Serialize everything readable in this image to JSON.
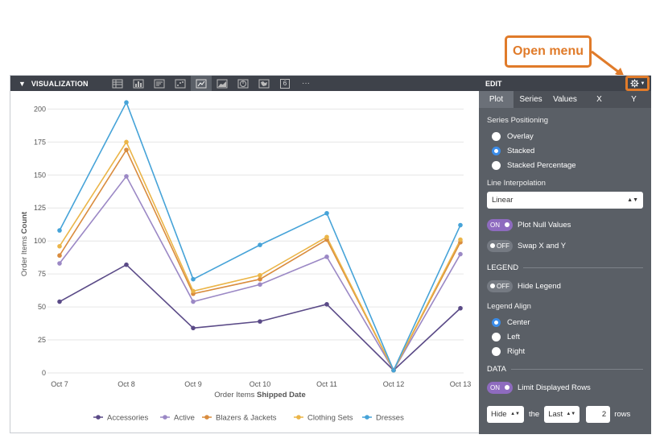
{
  "annotation": {
    "label": "Open menu"
  },
  "visualization": {
    "title": "VISUALIZATION",
    "tools": [
      "table-icon",
      "bar-chart-icon",
      "list-icon",
      "scatter-icon",
      "line-chart-icon",
      "area-chart-icon",
      "pie-chart-icon",
      "map-icon",
      "single-value-icon",
      "more-icon"
    ],
    "single_value_label": "6",
    "more_label": "···"
  },
  "chart_data": {
    "type": "line",
    "categories": [
      "Oct 7",
      "Oct 8",
      "Oct 9",
      "Oct 10",
      "Oct 11",
      "Oct 12",
      "Oct 13"
    ],
    "ylabel": "Order Items",
    "ylabel_bold": "Count",
    "xlabel": "Order Items",
    "xlabel_bold": "Shipped Date",
    "ylim": [
      0,
      210
    ],
    "yticks": [
      0,
      25,
      50,
      75,
      100,
      125,
      150,
      175,
      200
    ],
    "grid": true,
    "legend_position": "bottom",
    "series": [
      {
        "name": "Accessories",
        "color": "#5a4a87",
        "values": [
          54,
          82,
          34,
          39,
          52,
          2,
          49
        ]
      },
      {
        "name": "Active",
        "color": "#9b88c5",
        "values": [
          83,
          149,
          54,
          67,
          88,
          2,
          90
        ]
      },
      {
        "name": "Blazers & Jackets",
        "color": "#d98c3e",
        "values": [
          89,
          169,
          60,
          71,
          101,
          2,
          99
        ]
      },
      {
        "name": "Clothing Sets",
        "color": "#ebb548",
        "values": [
          96,
          175,
          62,
          74,
          103,
          2,
          101
        ]
      },
      {
        "name": "Dresses",
        "color": "#46a3d8",
        "values": [
          108,
          205,
          71,
          97,
          121,
          2,
          112
        ]
      }
    ]
  },
  "edit": {
    "title": "EDIT",
    "tabs": [
      "Plot",
      "Series",
      "Values",
      "X",
      "Y"
    ],
    "series_positioning": {
      "label": "Series Positioning",
      "options": [
        "Overlay",
        "Stacked",
        "Stacked Percentage"
      ],
      "selected": "Stacked"
    },
    "line_interpolation": {
      "label": "Line Interpolation",
      "value": "Linear"
    },
    "plot_null_values": {
      "state": "ON",
      "label": "Plot Null Values"
    },
    "swap_xy": {
      "state": "OFF",
      "label": "Swap X and Y"
    },
    "legend_section": "LEGEND",
    "hide_legend": {
      "state": "OFF",
      "label": "Hide Legend"
    },
    "legend_align": {
      "label": "Legend Align",
      "options": [
        "Center",
        "Left",
        "Right"
      ],
      "selected": "Center"
    },
    "data_section": "DATA",
    "limit_rows": {
      "state": "ON",
      "label": "Limit Displayed Rows"
    },
    "rows": {
      "mode": "Hide",
      "the": "the",
      "which": "Last",
      "count": "2",
      "unit": "rows"
    }
  }
}
